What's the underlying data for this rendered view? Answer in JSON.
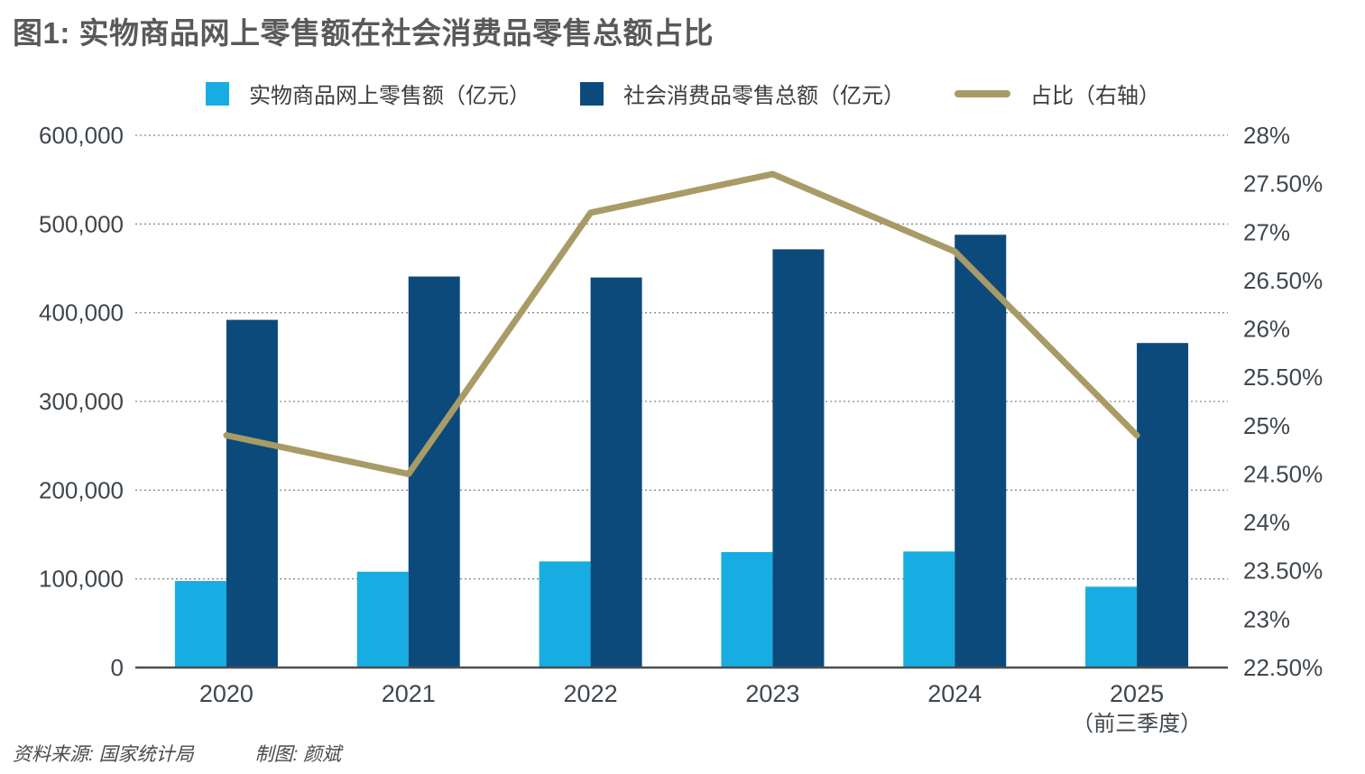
{
  "page": {
    "title": "图1: 实物商品网上零售额在社会消费品零售总额占比",
    "source": "资料来源: 国家统计局",
    "credit": "制图: 颜斌"
  },
  "legend": {
    "items": [
      {
        "label": "实物商品网上零售额（亿元）",
        "marker": "square",
        "color": "#17ADE2"
      },
      {
        "label": "社会消费品零售总额（亿元）",
        "marker": "square",
        "color": "#0C4A7C"
      },
      {
        "label": "占比（右轴）",
        "marker": "line",
        "color": "#A89B66"
      }
    ]
  },
  "chart_data": {
    "type": "bar+line",
    "title": "图1: 实物商品网上零售额在社会消费品零售总额占比",
    "categories": [
      "2020",
      "2021",
      "2022",
      "2023",
      "2024",
      "2025"
    ],
    "category_sublabels": [
      "",
      "",
      "",
      "",
      "",
      "（前三季度）"
    ],
    "series": [
      {
        "name": "实物商品网上零售额（亿元）",
        "type": "bar",
        "axis": "left",
        "color": "#17ADE2",
        "values": [
          97590,
          108042,
          119642,
          130174,
          130816,
          91151
        ]
      },
      {
        "name": "社会消费品零售总额（亿元）",
        "type": "bar",
        "axis": "left",
        "color": "#0C4A7C",
        "values": [
          391981,
          440823,
          439733,
          471495,
          487895,
          365877
        ]
      },
      {
        "name": "占比（右轴）",
        "type": "line",
        "axis": "right",
        "color": "#A89B66",
        "unit": "%",
        "values": [
          24.9,
          24.5,
          27.2,
          27.6,
          26.8,
          24.9
        ]
      }
    ],
    "left_axis": {
      "min": 0,
      "max": 600000,
      "step": 100000,
      "tick_labels": [
        "600,000",
        "500,000",
        "400,000",
        "300,000",
        "200,000",
        "100,000",
        "0"
      ]
    },
    "right_axis": {
      "min": 22.5,
      "max": 28,
      "step": 0.5,
      "tick_labels": [
        "28%",
        "27.50%",
        "27%",
        "26.50%",
        "26%",
        "25.50%",
        "25%",
        "24.50%",
        "24%",
        "23.50%",
        "23%",
        "22.50%"
      ]
    },
    "grid": "dotted-horizontal",
    "legend_position": "top",
    "colors": {
      "grid": "#8A8A8A",
      "baseline": "#4D4D4D",
      "axis_text": "#3F464C"
    }
  }
}
